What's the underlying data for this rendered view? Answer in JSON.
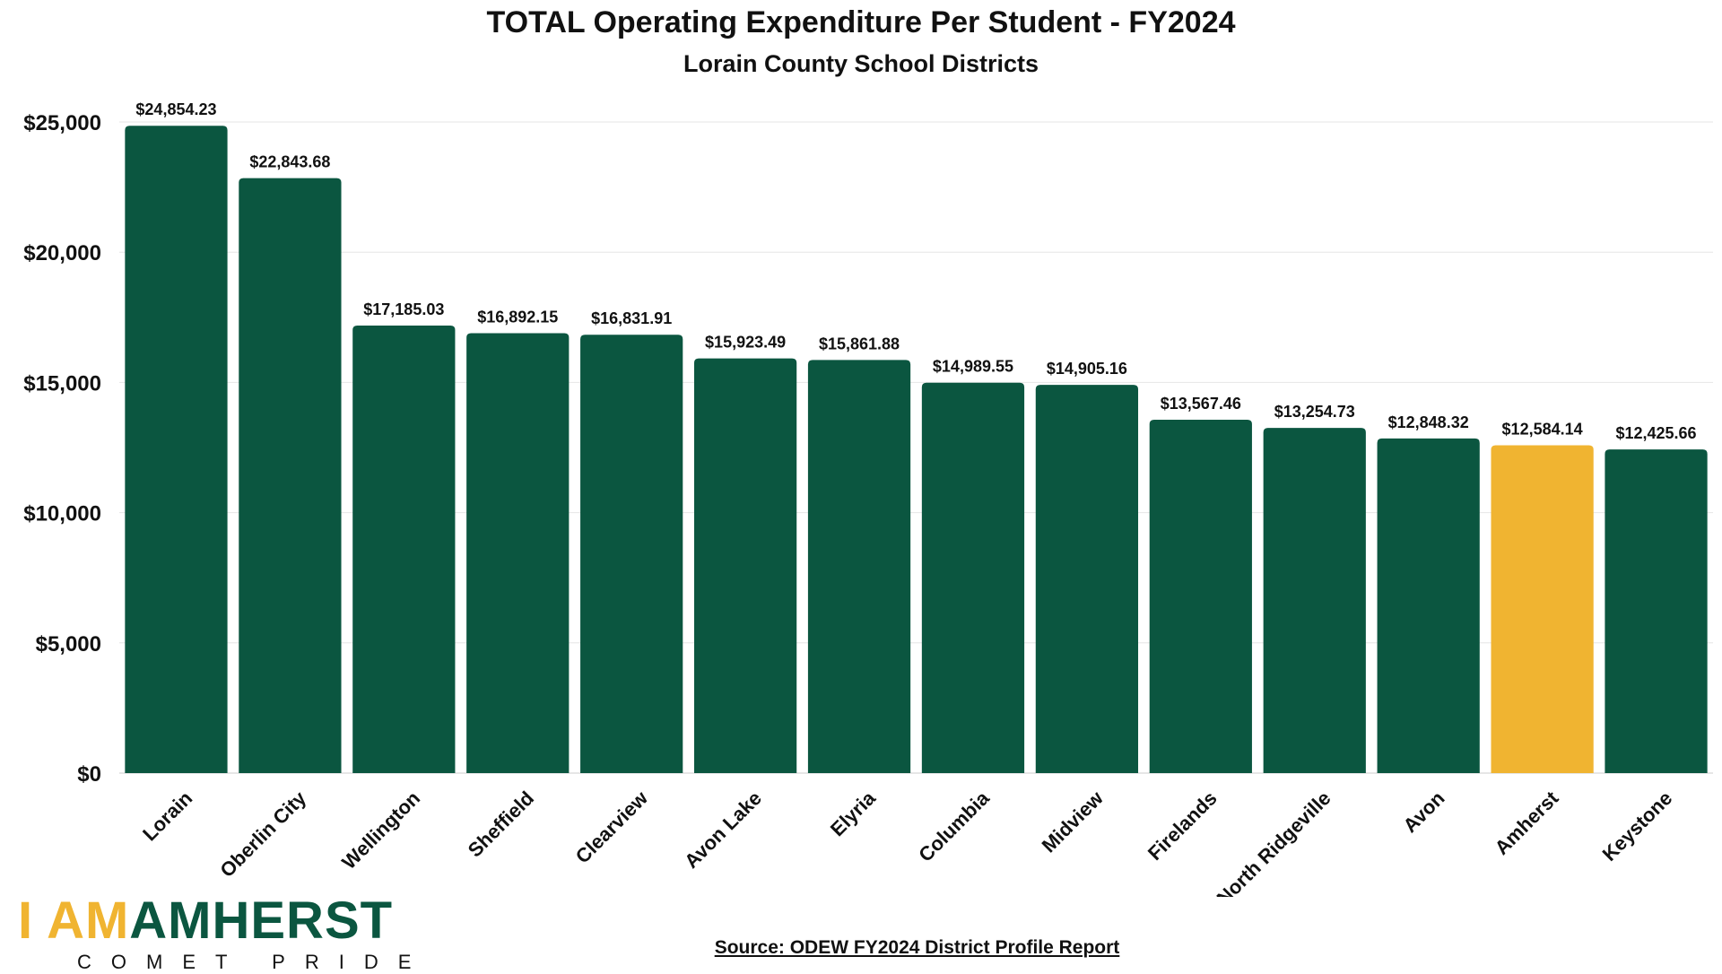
{
  "chart_data": {
    "type": "bar",
    "title": "TOTAL Operating Expenditure Per Student - FY2024",
    "subtitle": "Lorain County School Districts",
    "categories": [
      "Lorain",
      "Oberlin City",
      "Wellington",
      "Sheffield",
      "Clearview",
      "Avon Lake",
      "Elyria",
      "Columbia",
      "Midview",
      "Firelands",
      "North Ridgeville",
      "Avon",
      "Amherst",
      "Keystone"
    ],
    "values": [
      24854.23,
      22843.68,
      17185.03,
      16892.15,
      16831.91,
      15923.49,
      15861.88,
      14989.55,
      14905.16,
      13567.46,
      13254.73,
      12848.32,
      12584.14,
      12425.66
    ],
    "data_labels": [
      "$24,854.23",
      "$22,843.68",
      "$17,185.03",
      "$16,892.15",
      "$16,831.91",
      "$15,923.49",
      "$15,861.88",
      "$14,989.55",
      "$14,905.16",
      "$13,567.46",
      "$13,254.73",
      "$12,848.32",
      "$12,584.14",
      "$12,425.66"
    ],
    "highlight_category": "Amherst",
    "ylim": [
      0,
      25000
    ],
    "yticks": [
      0,
      5000,
      10000,
      15000,
      20000,
      25000
    ],
    "ytick_labels": [
      "$0",
      "$5,000",
      "$10,000",
      "$15,000",
      "$20,000",
      "$25,000"
    ],
    "grid": true,
    "colors": {
      "bar": "#0b5640",
      "highlight": "#f0b431",
      "grid": "#e6e6e6",
      "text": "#111111"
    }
  },
  "logo": {
    "part1": "I AM",
    "part2": "AMHERST",
    "tagline": "COMET PRIDE"
  },
  "source": "Source: ODEW FY2024 District Profile Report"
}
